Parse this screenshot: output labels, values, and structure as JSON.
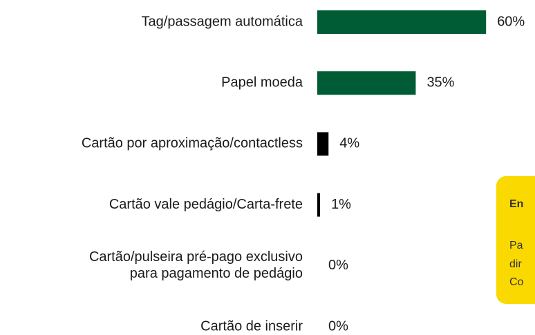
{
  "chart_data": {
    "type": "bar",
    "orientation": "horizontal",
    "categories": [
      "Tag/passagem automática",
      "Papel moeda",
      "Cartão por aproximação/contactless",
      "Cartão vale pedágio/Carta-frete",
      "Cartão/pulseira pré-pago exclusivo\npara pagamento de pedágio",
      "Cartão de inserir"
    ],
    "values": [
      60,
      35,
      4,
      1,
      0,
      0
    ],
    "value_labels": [
      "60%",
      "35%",
      "4%",
      "1%",
      "0%",
      "0%"
    ],
    "colors": [
      "#005c35",
      "#005c35",
      "#000000",
      "#000000",
      "#000000",
      "#000000"
    ],
    "annotations": {
      "heading": "En",
      "lines": [
        "Pa",
        "dir",
        "Co"
      ]
    }
  }
}
